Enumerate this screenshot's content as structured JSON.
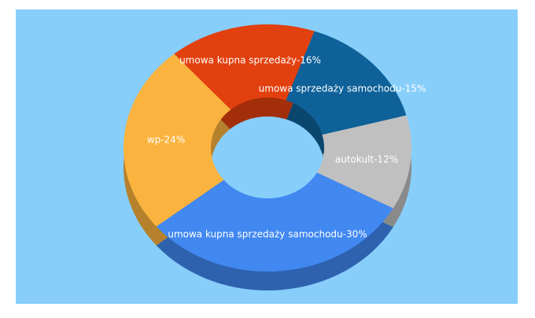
{
  "chart_data": {
    "type": "donut",
    "values": [
      15,
      12,
      30,
      24,
      16
    ],
    "value_labels": [
      "umowa sprzedaży samochodu-15%",
      "autokult-12%",
      "umowa kupna sprzedaży samochodu-30%",
      "wp-24%",
      "umowa kupna sprzedaży-16%"
    ],
    "colors": [
      "#0e6199",
      "#c0c0c0",
      "#4188f1",
      "#fbb33f",
      "#e2400e"
    ]
  }
}
